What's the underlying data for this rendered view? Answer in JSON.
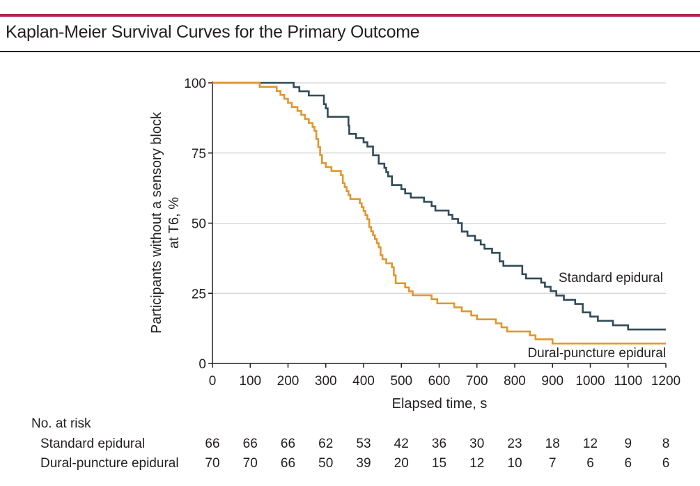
{
  "figure": {
    "title": "Kaplan-Meier Survival Curves for the Primary Outcome",
    "accent_color": "#b4234f"
  },
  "chart_data": {
    "type": "line",
    "step": true,
    "xlabel": "Elapsed time, s",
    "ylabel_line1": "Participants without a sensory block",
    "ylabel_line2": "at T6, %",
    "xlim": [
      0,
      1200
    ],
    "ylim": [
      0,
      100
    ],
    "x_ticks": [
      "0",
      "100",
      "200",
      "300",
      "400",
      "500",
      "600",
      "700",
      "800",
      "900",
      "1000",
      "1100",
      "1200"
    ],
    "y_ticks": [
      "0",
      "25",
      "50",
      "75",
      "100"
    ],
    "grid": "horizontal",
    "series": [
      {
        "name": "Standard epidural",
        "color": "#2f4b57",
        "points": [
          [
            0,
            100
          ],
          [
            210,
            100
          ],
          [
            215,
            98.5
          ],
          [
            230,
            97
          ],
          [
            255,
            95.5
          ],
          [
            295,
            92.4
          ],
          [
            300,
            90.9
          ],
          [
            305,
            87.9
          ],
          [
            360,
            84.8
          ],
          [
            362,
            81.8
          ],
          [
            380,
            80.3
          ],
          [
            400,
            78.8
          ],
          [
            410,
            77.3
          ],
          [
            425,
            74.2
          ],
          [
            440,
            71.2
          ],
          [
            455,
            69.7
          ],
          [
            460,
            68.2
          ],
          [
            465,
            66.7
          ],
          [
            475,
            63.6
          ],
          [
            500,
            62.1
          ],
          [
            510,
            60.6
          ],
          [
            525,
            59.1
          ],
          [
            560,
            57.6
          ],
          [
            580,
            56.1
          ],
          [
            590,
            54.5
          ],
          [
            625,
            53
          ],
          [
            635,
            51.5
          ],
          [
            650,
            50
          ],
          [
            660,
            47
          ],
          [
            675,
            45.5
          ],
          [
            695,
            43.9
          ],
          [
            710,
            42.4
          ],
          [
            720,
            40.9
          ],
          [
            740,
            39.4
          ],
          [
            760,
            36.4
          ],
          [
            770,
            34.8
          ],
          [
            820,
            31.8
          ],
          [
            830,
            30.3
          ],
          [
            870,
            28.8
          ],
          [
            880,
            27.3
          ],
          [
            895,
            25.8
          ],
          [
            910,
            24.2
          ],
          [
            930,
            22.7
          ],
          [
            960,
            21.2
          ],
          [
            980,
            18.2
          ],
          [
            1000,
            16.7
          ],
          [
            1020,
            15.2
          ],
          [
            1060,
            13.6
          ],
          [
            1100,
            12.1
          ],
          [
            1200,
            12.1
          ]
        ]
      },
      {
        "name": "Dural-puncture epidural",
        "color": "#e2962b",
        "points": [
          [
            0,
            100
          ],
          [
            120,
            100
          ],
          [
            125,
            98.6
          ],
          [
            170,
            97.1
          ],
          [
            180,
            95.7
          ],
          [
            190,
            94.3
          ],
          [
            200,
            92.9
          ],
          [
            210,
            91.4
          ],
          [
            225,
            90
          ],
          [
            235,
            88.6
          ],
          [
            245,
            87.1
          ],
          [
            255,
            85.7
          ],
          [
            265,
            84.3
          ],
          [
            270,
            82.9
          ],
          [
            275,
            80
          ],
          [
            280,
            77.1
          ],
          [
            285,
            74.3
          ],
          [
            290,
            71.4
          ],
          [
            300,
            70
          ],
          [
            315,
            68.6
          ],
          [
            340,
            67.1
          ],
          [
            345,
            64.3
          ],
          [
            350,
            62.9
          ],
          [
            355,
            61.4
          ],
          [
            360,
            60
          ],
          [
            365,
            58.6
          ],
          [
            390,
            57.1
          ],
          [
            395,
            55.7
          ],
          [
            400,
            54.3
          ],
          [
            405,
            52.9
          ],
          [
            410,
            51.4
          ],
          [
            415,
            48.6
          ],
          [
            420,
            47.1
          ],
          [
            425,
            45.7
          ],
          [
            430,
            44.3
          ],
          [
            435,
            42.9
          ],
          [
            440,
            41.4
          ],
          [
            445,
            38.6
          ],
          [
            450,
            37.1
          ],
          [
            460,
            35.7
          ],
          [
            475,
            34.3
          ],
          [
            480,
            31.4
          ],
          [
            485,
            28.6
          ],
          [
            510,
            27.1
          ],
          [
            520,
            25.7
          ],
          [
            530,
            24.3
          ],
          [
            580,
            22.9
          ],
          [
            595,
            21.4
          ],
          [
            640,
            20
          ],
          [
            660,
            18.6
          ],
          [
            685,
            17.1
          ],
          [
            700,
            15.7
          ],
          [
            750,
            14.3
          ],
          [
            765,
            12.9
          ],
          [
            780,
            11.4
          ],
          [
            840,
            10
          ],
          [
            855,
            8.6
          ],
          [
            900,
            7.1
          ],
          [
            1200,
            7.1
          ]
        ]
      }
    ],
    "series_labels": [
      "Standard epidural",
      "Dural-puncture epidural"
    ]
  },
  "risk_table": {
    "header": "No. at risk",
    "times": [
      0,
      100,
      200,
      300,
      400,
      500,
      600,
      700,
      800,
      900,
      1000,
      1100,
      1200
    ],
    "rows": [
      {
        "label": "Standard epidural",
        "values": [
          "66",
          "66",
          "66",
          "62",
          "53",
          "42",
          "36",
          "30",
          "23",
          "18",
          "12",
          "9",
          "8"
        ]
      },
      {
        "label": "Dural-puncture epidural",
        "values": [
          "70",
          "70",
          "66",
          "50",
          "39",
          "20",
          "15",
          "12",
          "10",
          "7",
          "6",
          "6",
          "6"
        ]
      }
    ]
  }
}
